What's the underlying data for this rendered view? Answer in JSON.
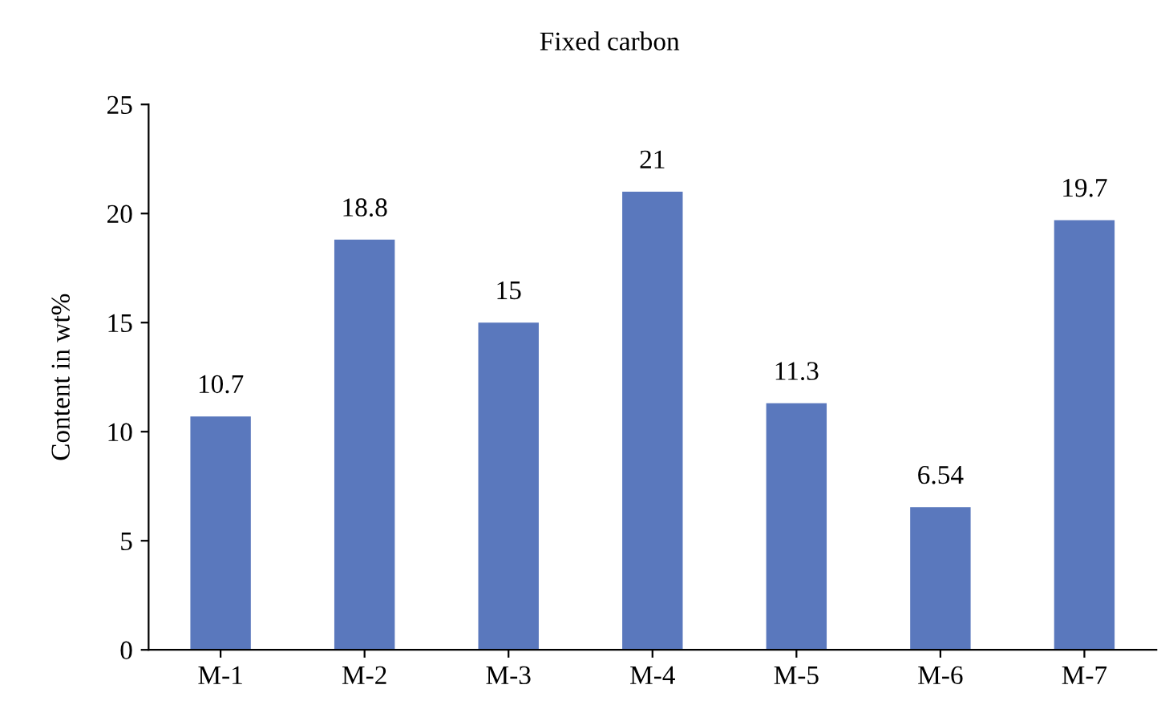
{
  "chart_data": {
    "type": "bar",
    "title": "Fixed carbon",
    "ylabel": "Content in wt%",
    "categories": [
      "M-1",
      "M-2",
      "M-3",
      "M-4",
      "M-5",
      "M-6",
      "M-7"
    ],
    "values": [
      10.7,
      18.8,
      15,
      21,
      11.3,
      6.54,
      19.7
    ],
    "color": "#5a78bd",
    "ylim": [
      0,
      25
    ],
    "yticks": [
      0,
      5,
      10,
      15,
      20,
      25
    ],
    "grid": false,
    "legend": false,
    "data_labels": true
  }
}
